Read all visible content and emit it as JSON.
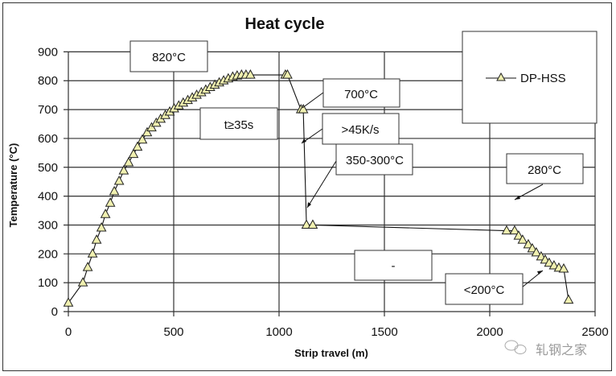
{
  "chart_data": {
    "type": "line",
    "title": "Heat cycle",
    "xlabel": "Strip travel (m)",
    "ylabel": "Temperature (°C)",
    "xlim": [
      0,
      2500
    ],
    "ylim": [
      0,
      900
    ],
    "xticks": [
      0,
      500,
      1000,
      1500,
      2000,
      2500
    ],
    "yticks": [
      0,
      100,
      200,
      300,
      400,
      500,
      600,
      700,
      800,
      900
    ],
    "grid": true,
    "legend_position": "top-right",
    "series": [
      {
        "name": "DP-HSS",
        "marker": "triangle",
        "marker_color": "#f0f0b0",
        "line_color": "#111111",
        "x": [
          0,
          69,
          92,
          115,
          134,
          157,
          176,
          199,
          218,
          241,
          263,
          286,
          309,
          328,
          351,
          374,
          395,
          417,
          438,
          460,
          481,
          502,
          524,
          545,
          567,
          588,
          609,
          631,
          652,
          673,
          695,
          716,
          737,
          759,
          780,
          801,
          822,
          843,
          864,
          1030,
          1040,
          1104,
          1115,
          1130,
          1160,
          2080,
          2118,
          2137,
          2156,
          2183,
          2202,
          2221,
          2244,
          2263,
          2282,
          2305,
          2328,
          2351,
          2374
        ],
        "y": [
          30,
          100,
          153,
          200,
          248,
          290,
          337,
          376,
          416,
          452,
          488,
          516,
          545,
          570,
          595,
          620,
          637,
          653,
          667,
          680,
          692,
          703,
          713,
          723,
          732,
          741,
          750,
          759,
          768,
          777,
          785,
          793,
          800,
          807,
          813,
          817,
          820,
          820,
          820,
          820,
          820,
          700,
          700,
          300,
          300,
          280,
          280,
          262,
          248,
          232,
          218,
          204,
          190,
          179,
          168,
          159,
          151,
          148,
          40
        ]
      }
    ],
    "annotations": [
      {
        "text": "820°C",
        "id": "a820"
      },
      {
        "text": "t≥35s",
        "id": "ahold"
      },
      {
        "text": "700°C",
        "id": "a700"
      },
      {
        "text": ">45K/s",
        "id": "arate"
      },
      {
        "text": "350-300°C",
        "id": "a350"
      },
      {
        "text": "280°C",
        "id": "a280"
      },
      {
        "text": "-",
        "id": "adash"
      },
      {
        "text": "<200°C",
        "id": "a200"
      }
    ]
  },
  "watermark": {
    "text": "轧钢之家",
    "icon": "wechat-icon"
  }
}
